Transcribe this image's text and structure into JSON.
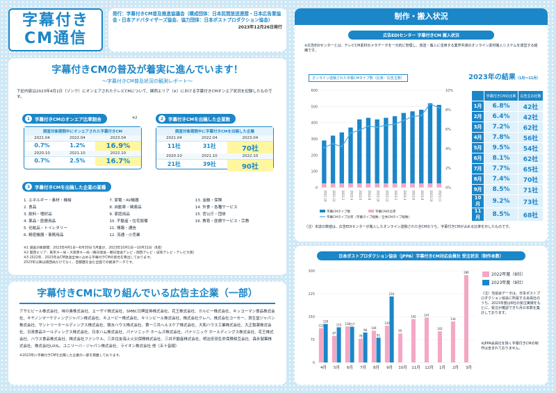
{
  "header": {
    "title_line1": "字幕付き",
    "title_line2": "CM通信",
    "issuer": "発行：字幕付きCM普及推進協議会（構成団体：日本民間放送連盟・日本広告業協会・日本アドバタイザーズ協会、協力団体：日本ポストプロダクション協会）",
    "date": "2023年12月26日発行"
  },
  "main": {
    "title": "字幕付きCMの普及が着実に進んでいます！",
    "subtitle": "〜字幕付きCM普及状況の観測レポート〜",
    "intro": "下記内容は2023年4月1日（ゾンク）にオンエアされたテレビCMについて、関西エリア（※）における字幕付きCMオンエア状況を記録したものです。",
    "section1": "字幕付きCMのオンエア比率割合",
    "section2": "字幕付きCMを出稿した企業数",
    "section3": "字幕付きCMを出稿した企業の業種",
    "note_tag": "※2",
    "box1": {
      "caption": "調査対象期間中にオンエアされた字幕付きCM",
      "headers": [
        "2021.04",
        "2022.04",
        "2023.04"
      ],
      "row1": [
        "0.7%",
        "1.2%",
        "16.9%"
      ],
      "headers2": [
        "2020.10",
        "2021.10",
        "2022.10"
      ],
      "row2": [
        "0.7%",
        "2.5%",
        "16.7%"
      ]
    },
    "box2": {
      "caption": "調査対象期間中に字幕付きCMを出稿した企業",
      "headers": [
        "2021.04",
        "2022.04",
        "2023.04"
      ],
      "row1": [
        "11社",
        "31社",
        "70社"
      ],
      "headers2": [
        "2020.10",
        "2021.10",
        "2022.10"
      ],
      "row2": [
        "21社",
        "39社",
        "90社"
      ]
    },
    "industries": [
      "1. エネルギー・素材・機械",
      "7. 家電・AV機器",
      "13. 金融・保険",
      "2. 食品",
      "8. 自動車・関連品",
      "14. 外食・各種サービス",
      "3. 飲料・嗜好品",
      "9. 家庭用品",
      "15. 官公庁・団体",
      "4. 薬品・医療用品",
      "10. 不動産・住宅設備",
      "16. 教育・医療サービス・宗教",
      "5. 化粧品・トイレタリー",
      "11. 情報・通信",
      "",
      "6. 精密機器・事務用品",
      "12. 流通・小売業",
      ""
    ],
    "footnotes": [
      "※1 調査対象期間：2023年4月1日〜6月30日 5月集計、2023年10月1日〜10月31日（8週）",
      "※2 関西エリア：東京キー局・大阪準キー局（毎日放送・朝日放送テレビ・関西テレビ・読売テレビ・テレビ大阪）",
      "※3 2022年、2023年はCM放送全体に占める字幕付きCMの割合を算出しております。",
      "2023年以降は関西局だけでなく、首都圏を含む全国での観測データです。"
    ]
  },
  "sponsors": {
    "title": "字幕付きCMに取り組んでいる広告主企業（一部）",
    "list": "アサヒビール株式会社、味の素株式会社、エーザイ株式会社、SMBC日興証券株式会社、花王株式会社、カルビー株式会社、キッコーマン食品株式会社、キヤノンマーケティングジャパン株式会社、キユーピー株式会社、キリンビール株式会社、株式会社クレハ、株式会社コーセー、資生堂ジャパン株式会社、サントリーホールディングス株式会社、積水ハウス株式会社、第一三共ヘルスケア株式会社、大和ハウス工業株式会社、大正製薬株式会社、日清食品ホールディングス株式会社、日本ハム株式会社、パナソニック ホームズ株式会社、パナソニック ホールディングス株式会社、花王株式会社、ハウス食品株式会社、株式会社ファンケル、三井住友海上火災保険株式会社、三井不動産株式会社、明治安田生命保険相互会社、森永製菓株式会社、株式会社LIXIL、ユニリーバ・ジャパン株式会社、ライオン株式会社 他（五十音順）",
    "footnote": "※2023年に字幕付きCMを出稿した企業の一部を掲載しております。"
  },
  "production": {
    "title": "制作・搬入状況",
    "subtitle": "広告EDIセンター 字幕付きCM 搬入状況",
    "desc": "※広告EDIセンターとは、テレビCM素材のメタデータを一元的に管理し、放送・搬入に活用する業界共通のオンライン素材搬入システムを運営する組織です。",
    "chart_tag": "オンライン送稿された字幕CMタイプ数（比率／広告主数）",
    "year_title": "2023年の結果",
    "year_range": "（1月〜11月）",
    "col_pct": "字幕付きCMの比率",
    "col_co": "広告主の社数",
    "months": [
      "1月",
      "2月",
      "3月",
      "4月",
      "5月",
      "6月",
      "7月",
      "8月",
      "9月",
      "10月",
      "11月"
    ],
    "pcts": [
      "6.8%",
      "6.4%",
      "7.2%",
      "7.8%",
      "9.5%",
      "8.1%",
      "7.7%",
      "7.4%",
      "8.5%",
      "9.2%",
      "8.5%"
    ],
    "companies": [
      "42社",
      "42社",
      "62社",
      "56社",
      "54社",
      "62社",
      "65社",
      "70社",
      "71社",
      "73社",
      "68社"
    ],
    "footnote": "（注）本誌の数値は、広告EDIセンターが搬入したオンライン送稿された全CMのうち、字幕付きCMが占める比率を示したものです。"
  },
  "jppa": {
    "title": "日本ポストプロダクション協会（JPPA）字幕付きCM対応会員社 受注状況（制作本数）",
    "legend_2022": "2022年度（8社）",
    "legend_2023": "2023年度（8社）",
    "note1": "（注）当協会データは、日本ポストプロダクション協会に所属する会員社のうち、2023年度は8社の受注実績をもとに、受注が確認できた月の本数を集計しております。",
    "note2": "※JPPA会員社を除く字幕付きCMの制作は含まれておりません。"
  },
  "chart_data": [
    {
      "type": "bar",
      "title": "オンライン送稿された字幕CMタイプ数（比率／広告主数）",
      "categories": [
        "2021.10",
        "2021.12",
        "2022.2",
        "2022.4",
        "2022.6",
        "2022.8",
        "2022.10",
        "2022.12",
        "2023.2",
        "2023.4",
        "2023.6",
        "2023.8",
        "2023.10",
        "2023.11"
      ],
      "series": [
        {
          "name": "字幕CMタイプ数",
          "values": [
            290,
            320,
            340,
            370,
            420,
            430,
            420,
            430,
            440,
            460,
            470,
            480,
            520,
            510
          ]
        },
        {
          "name": "字幕CMの比率",
          "values": [
            4.1,
            4.5,
            4.2,
            5.6,
            5.9,
            6.3,
            6.2,
            6.4,
            6.5,
            6.9,
            7.3,
            7.4,
            8.6,
            8.2
          ]
        }
      ],
      "legend": [
        "字幕CMタイプ数",
        "字幕CMの比率",
        "字幕CMタイプ比率（字幕タイプ総数／全体CMタイプ総数）"
      ],
      "ylim_left": [
        0,
        600
      ],
      "ylim_right": [
        0,
        10
      ],
      "yticks_left": [
        "0",
        "100",
        "200",
        "300",
        "400",
        "500",
        "600"
      ],
      "yticks_right": [
        "0%",
        "2%",
        "4%",
        "6%",
        "8%",
        "10%"
      ]
    },
    {
      "type": "bar",
      "title": "JPPA 受注状況",
      "categories": [
        "4月",
        "5月",
        "6月",
        "7月",
        "8月",
        "9月",
        "10月",
        "11月",
        "12月",
        "1月",
        "2月",
        "3月"
      ],
      "series": [
        {
          "name": "2022年度",
          "values": [
            112,
            87,
            118,
            78,
            104,
            120,
            95,
            142,
            147,
            102,
            134,
            286
          ]
        },
        {
          "name": "2023年度",
          "values": [
            126,
            115,
            117,
            98,
            81,
            216,
            null,
            null,
            null,
            null,
            null,
            null
          ]
        }
      ],
      "ylim": [
        0,
        300
      ],
      "yticks": [
        "0",
        "75",
        "150",
        "225",
        "300"
      ]
    }
  ]
}
